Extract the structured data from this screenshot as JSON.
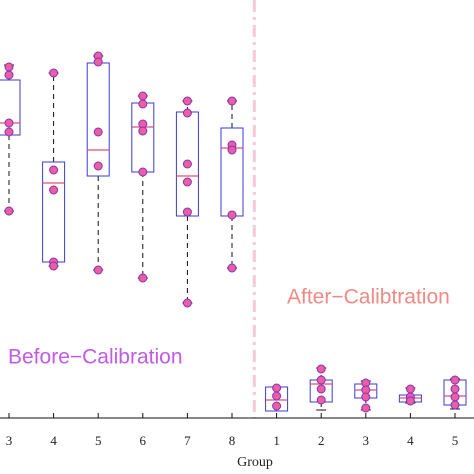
{
  "chart_data": {
    "type": "box",
    "xlabel": "Group",
    "categories": [
      "3",
      "4",
      "5",
      "6",
      "7",
      "8",
      "1",
      "2",
      "3",
      "4",
      "5"
    ],
    "ylim": [
      0,
      418
    ],
    "box_color": "#3a3ad0",
    "median_color": "#e0506e",
    "whisker_color": "#111111",
    "point_color": "#e8609c",
    "point_edge": "#8a2bc8",
    "boxes": [
      {
        "low": 207,
        "q1": 283,
        "median": 295,
        "q3": 338,
        "high": 353,
        "points": [
          351,
          343,
          295,
          286,
          207
        ]
      },
      {
        "low": 152,
        "q1": 156,
        "median": 235,
        "q3": 256,
        "high": 345,
        "points": [
          345,
          248,
          228,
          156,
          152
        ]
      },
      {
        "low": 148,
        "q1": 242,
        "median": 268,
        "q3": 355,
        "high": 362,
        "points": [
          362,
          356,
          286,
          252,
          148
        ]
      },
      {
        "low": 140,
        "q1": 246,
        "median": 291,
        "q3": 315,
        "high": 322,
        "points": [
          322,
          314,
          294,
          287,
          246,
          140
        ]
      },
      {
        "low": 115,
        "q1": 202,
        "median": 242,
        "q3": 306,
        "high": 317,
        "points": [
          317,
          305,
          254,
          236,
          206,
          115
        ]
      },
      {
        "low": 150,
        "q1": 202,
        "median": 270,
        "q3": 290,
        "high": 317,
        "points": [
          317,
          273,
          268,
          203,
          150
        ]
      },
      {
        "low": 7,
        "q1": 7,
        "median": 18,
        "q3": 31,
        "high": 31,
        "points": [
          30,
          22,
          12
        ]
      },
      {
        "low": 8,
        "q1": 16,
        "median": 34,
        "q3": 38,
        "high": 50,
        "points": [
          49,
          38,
          29,
          18
        ]
      },
      {
        "low": 8,
        "q1": 20,
        "median": 28,
        "q3": 34,
        "high": 37,
        "points": [
          35,
          28,
          21,
          10
        ]
      },
      {
        "low": 15,
        "q1": 16,
        "median": 20,
        "q3": 23,
        "high": 30,
        "points": [
          29,
          21,
          17
        ]
      },
      {
        "low": 9,
        "q1": 13,
        "median": 22,
        "q3": 38,
        "high": 39,
        "points": [
          38,
          29,
          21,
          13
        ]
      }
    ],
    "annotations": [
      {
        "text": "Before−Calibration",
        "color": "#c25ae6"
      },
      {
        "text": "After−Calibtration",
        "color": "#f08a84"
      }
    ]
  }
}
